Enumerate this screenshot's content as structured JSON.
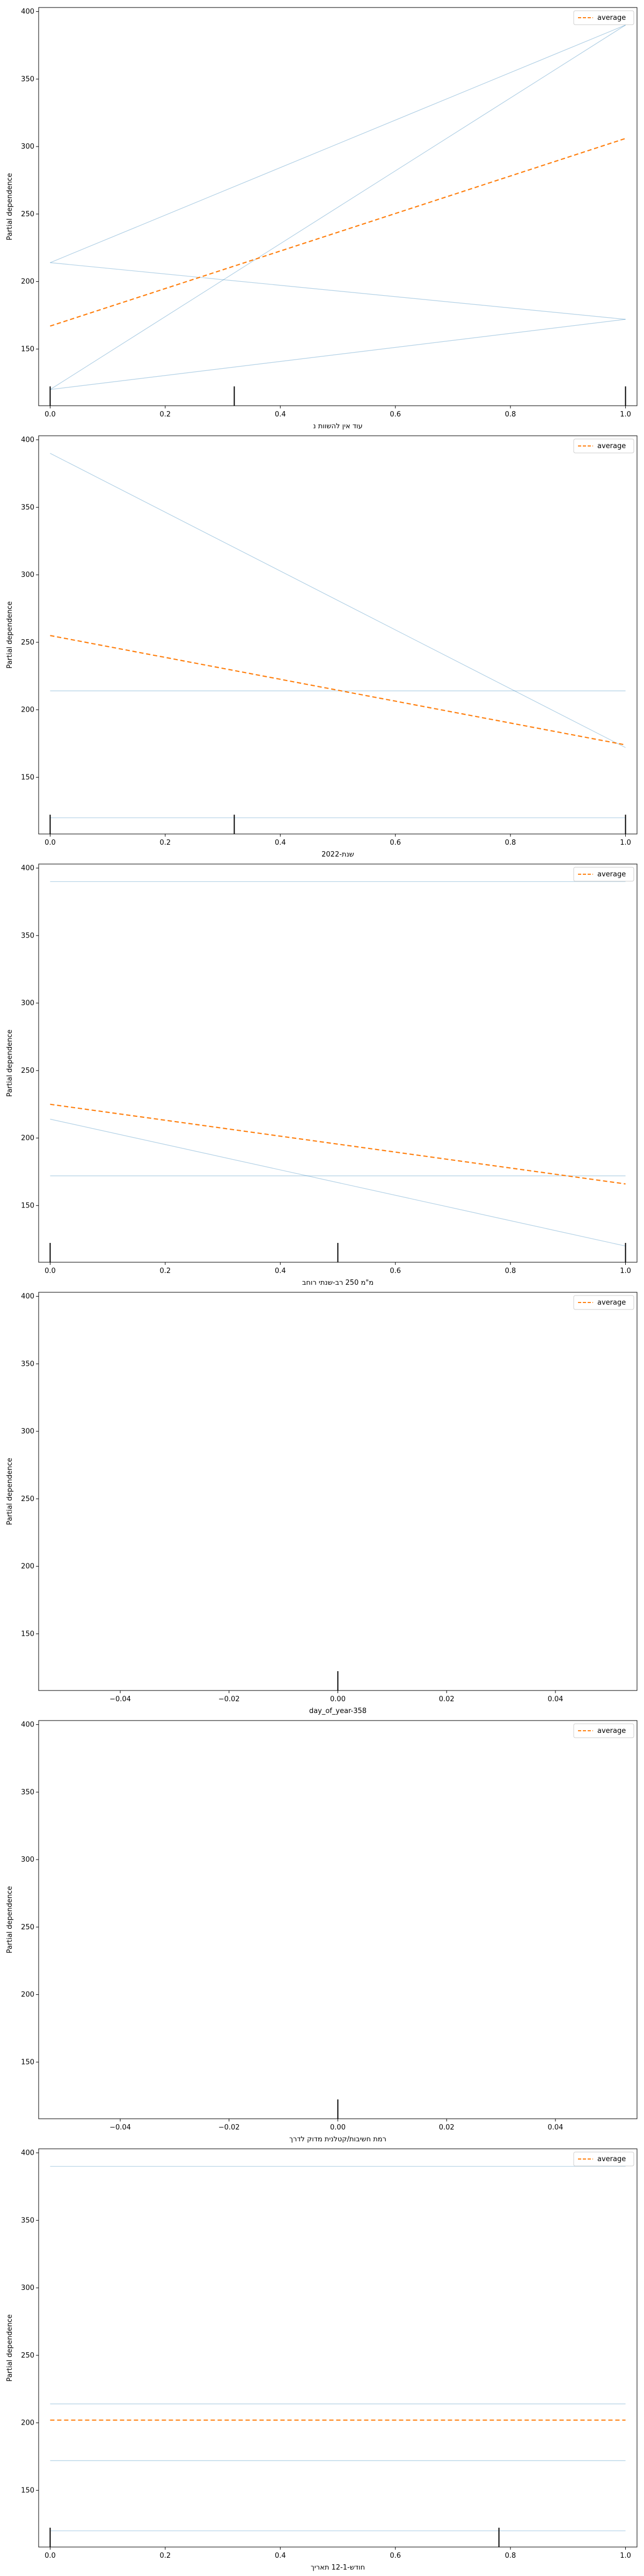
{
  "chart_data": [
    {
      "type": "line",
      "xlabel": "עוד אין להשוות נ",
      "ylabel": "Partial dependence",
      "xlim": [
        -0.02,
        1.02
      ],
      "ylim": [
        108,
        403
      ],
      "xticks": [
        0.0,
        0.2,
        0.4,
        0.6,
        0.8,
        1.0
      ],
      "xtick_labels": [
        "0.0",
        "0.2",
        "0.4",
        "0.6",
        "0.8",
        "1.0"
      ],
      "yticks": [
        150,
        200,
        250,
        300,
        350,
        400
      ],
      "ytick_labels": [
        "150",
        "200",
        "250",
        "300",
        "350",
        "400"
      ],
      "legend": {
        "label": "average",
        "position": "top-right"
      },
      "ice_lines": [
        {
          "x": [
            0,
            1
          ],
          "y": [
            214,
            390
          ]
        },
        {
          "x": [
            0,
            1
          ],
          "y": [
            120,
            390
          ]
        },
        {
          "x": [
            0,
            1
          ],
          "y": [
            214,
            172
          ]
        },
        {
          "x": [
            0,
            1
          ],
          "y": [
            120,
            172
          ]
        }
      ],
      "average": {
        "name": "average",
        "x": [
          0,
          1
        ],
        "y": [
          167,
          306
        ]
      },
      "deciles": [
        0,
        0.32,
        1
      ]
    },
    {
      "type": "line",
      "xlabel": "שנת-2022",
      "ylabel": "Partial dependence",
      "xlim": [
        -0.02,
        1.02
      ],
      "ylim": [
        108,
        403
      ],
      "xticks": [
        0.0,
        0.2,
        0.4,
        0.6,
        0.8,
        1.0
      ],
      "xtick_labels": [
        "0.0",
        "0.2",
        "0.4",
        "0.6",
        "0.8",
        "1.0"
      ],
      "yticks": [
        150,
        200,
        250,
        300,
        350,
        400
      ],
      "ytick_labels": [
        "150",
        "200",
        "250",
        "300",
        "350",
        "400"
      ],
      "legend": {
        "label": "average",
        "position": "top-right"
      },
      "ice_lines": [
        {
          "x": [
            0,
            1
          ],
          "y": [
            390,
            172
          ]
        },
        {
          "x": [
            0,
            1
          ],
          "y": [
            214,
            214
          ]
        },
        {
          "x": [
            0,
            1
          ],
          "y": [
            120,
            120
          ]
        }
      ],
      "average": {
        "name": "average",
        "x": [
          0,
          1
        ],
        "y": [
          255,
          174
        ]
      },
      "deciles": [
        0,
        0.32,
        1
      ]
    },
    {
      "type": "line",
      "xlabel": "מ\"מ 250 רב-שנתי רוחב",
      "ylabel": "Partial dependence",
      "xlim": [
        -0.02,
        1.02
      ],
      "ylim": [
        108,
        403
      ],
      "xticks": [
        0.0,
        0.2,
        0.4,
        0.6,
        0.8,
        1.0
      ],
      "xtick_labels": [
        "0.0",
        "0.2",
        "0.4",
        "0.6",
        "0.8",
        "1.0"
      ],
      "yticks": [
        150,
        200,
        250,
        300,
        350,
        400
      ],
      "ytick_labels": [
        "150",
        "200",
        "250",
        "300",
        "350",
        "400"
      ],
      "legend": {
        "label": "average",
        "position": "top-right"
      },
      "ice_lines": [
        {
          "x": [
            0,
            1
          ],
          "y": [
            390,
            390
          ]
        },
        {
          "x": [
            0,
            1
          ],
          "y": [
            214,
            120
          ]
        },
        {
          "x": [
            0,
            1
          ],
          "y": [
            172,
            172
          ]
        }
      ],
      "average": {
        "name": "average",
        "x": [
          0,
          1
        ],
        "y": [
          225,
          166
        ]
      },
      "deciles": [
        0,
        0.5,
        1
      ]
    },
    {
      "type": "line",
      "xlabel": "day_of_year-358",
      "ylabel": "Partial dependence",
      "xlim": [
        -0.055,
        0.055
      ],
      "ylim": [
        108,
        403
      ],
      "xticks": [
        -0.04,
        -0.02,
        0.0,
        0.02,
        0.04
      ],
      "xtick_labels": [
        "−0.04",
        "−0.02",
        "0.00",
        "0.02",
        "0.04"
      ],
      "yticks": [
        150,
        200,
        250,
        300,
        350,
        400
      ],
      "ytick_labels": [
        "150",
        "200",
        "250",
        "300",
        "350",
        "400"
      ],
      "legend": {
        "label": "average",
        "position": "top-right"
      },
      "ice_lines": [],
      "average": {
        "name": "average",
        "x": [],
        "y": []
      },
      "deciles": [
        0
      ]
    },
    {
      "type": "line",
      "xlabel": "רמת חשיבות/קטלנית מדוק לדרך",
      "ylabel": "Partial dependence",
      "xlim": [
        -0.055,
        0.055
      ],
      "ylim": [
        108,
        403
      ],
      "xticks": [
        -0.04,
        -0.02,
        0.0,
        0.02,
        0.04
      ],
      "xtick_labels": [
        "−0.04",
        "−0.02",
        "0.00",
        "0.02",
        "0.04"
      ],
      "yticks": [
        150,
        200,
        250,
        300,
        350,
        400
      ],
      "ytick_labels": [
        "150",
        "200",
        "250",
        "300",
        "350",
        "400"
      ],
      "legend": {
        "label": "average",
        "position": "top-right"
      },
      "ice_lines": [],
      "average": {
        "name": "average",
        "x": [],
        "y": []
      },
      "deciles": [
        0
      ]
    },
    {
      "type": "line",
      "xlabel": "חודש-12-1 תאריך",
      "ylabel": "Partial dependence",
      "xlim": [
        -0.02,
        1.02
      ],
      "ylim": [
        108,
        403
      ],
      "xticks": [
        0.0,
        0.2,
        0.4,
        0.6,
        0.8,
        1.0
      ],
      "xtick_labels": [
        "0.0",
        "0.2",
        "0.4",
        "0.6",
        "0.8",
        "1.0"
      ],
      "yticks": [
        150,
        200,
        250,
        300,
        350,
        400
      ],
      "ytick_labels": [
        "150",
        "200",
        "250",
        "300",
        "350",
        "400"
      ],
      "legend": {
        "label": "average",
        "position": "top-right"
      },
      "ice_lines": [
        {
          "x": [
            0,
            1
          ],
          "y": [
            390,
            390
          ]
        },
        {
          "x": [
            0,
            1
          ],
          "y": [
            214,
            214
          ]
        },
        {
          "x": [
            0,
            1
          ],
          "y": [
            172,
            172
          ]
        },
        {
          "x": [
            0,
            1
          ],
          "y": [
            120,
            120
          ]
        }
      ],
      "average": {
        "name": "average",
        "x": [
          0,
          1
        ],
        "y": [
          202,
          202
        ]
      },
      "deciles": [
        0,
        0.78
      ]
    }
  ],
  "colors": {
    "ice": "#1f77b4",
    "average": "#ff7f0e"
  }
}
